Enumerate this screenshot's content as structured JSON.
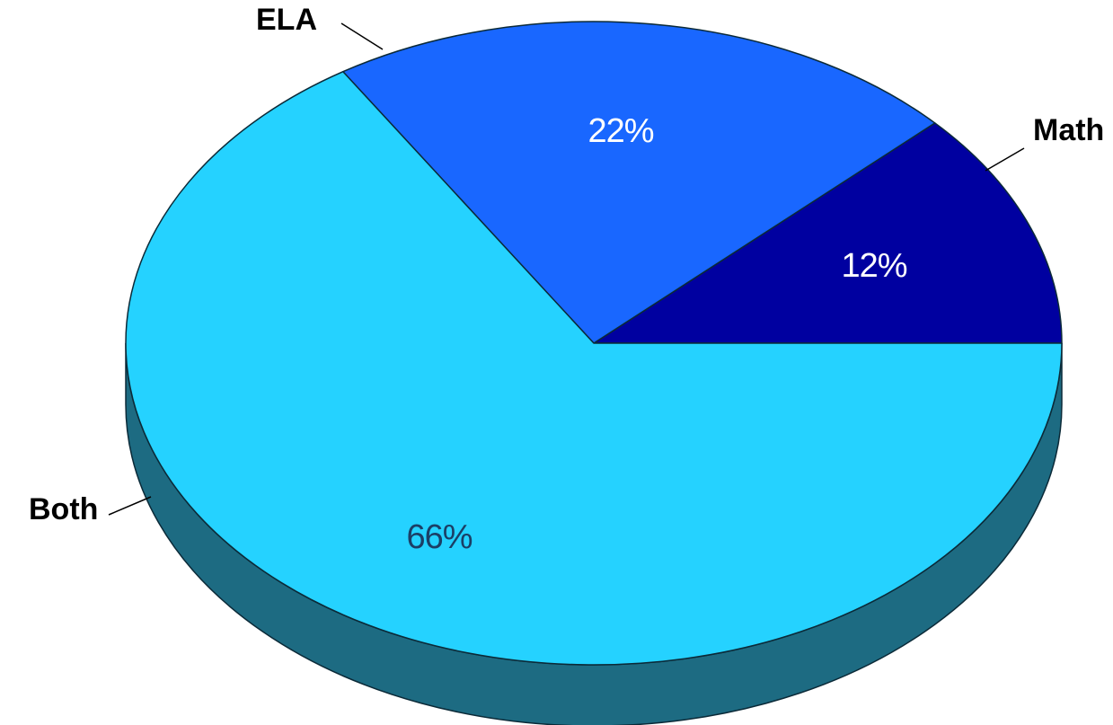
{
  "chart_data": {
    "type": "pie",
    "style": "3d",
    "start_angle_deg": 0,
    "direction": "counterclockwise",
    "slices": [
      {
        "name": "Math",
        "value": 12,
        "label": "12%",
        "color": "#0000A0",
        "text_color": "#FFFFFF"
      },
      {
        "name": "ELA",
        "value": 22,
        "label": "22%",
        "color": "#1967FF",
        "text_color": "#FFFFFF"
      },
      {
        "name": "Both",
        "value": 66,
        "label": "66%",
        "color": "#25D2FF",
        "text_color": "#1B3F66"
      }
    ],
    "side_color": "#1D6B82",
    "outline_color": "#0B2A38",
    "leader_color": "#000000"
  }
}
